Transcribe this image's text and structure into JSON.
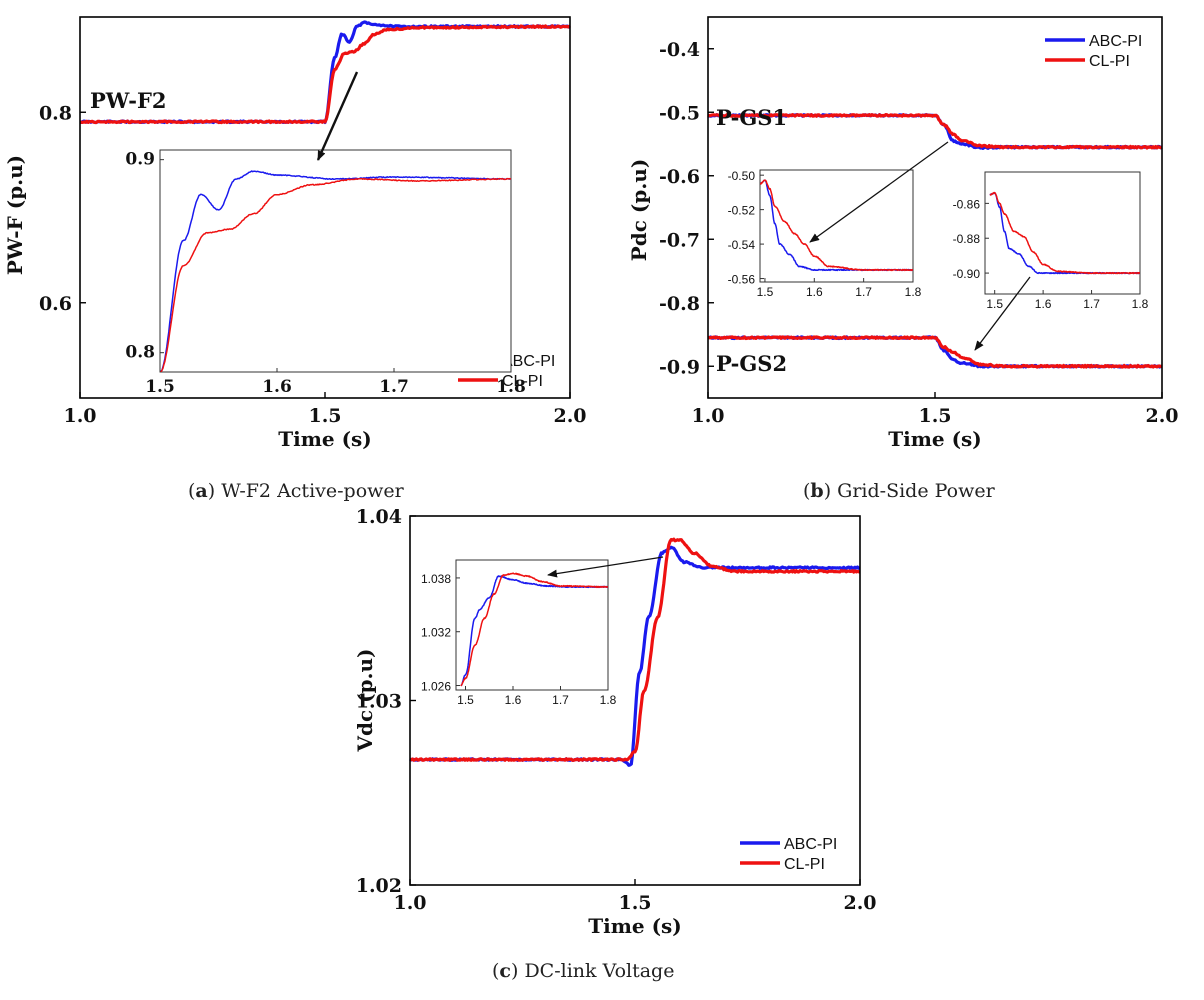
{
  "figure": {
    "colors": {
      "abc": "#1a1aee",
      "cl": "#ee1111",
      "axis": "#000000",
      "arrow": "#111111"
    }
  },
  "chart_data": [
    {
      "type": "line",
      "id": "a",
      "caption_letter": "a",
      "caption_text": "W-F2 Active-power",
      "xlabel": "Time (s)",
      "ylabel": "PW-F (p.u)",
      "xlim": [
        1.0,
        2.0
      ],
      "ylim": [
        0.5,
        0.9
      ],
      "xticks": [
        1.0,
        1.5,
        2.0
      ],
      "xtick_labels": [
        "1.0",
        "1.5",
        "2.0"
      ],
      "yticks": [
        0.6,
        0.8
      ],
      "ytick_labels": [
        "0.6",
        "0.8"
      ],
      "annotations": [
        "PW-F2"
      ],
      "legend": {
        "position": "bottom-right",
        "entries": [
          "ABC-PI",
          "CL-PI"
        ]
      },
      "series": [
        {
          "name": "ABC-PI",
          "x": [
            1.0,
            1.48,
            1.5,
            1.52,
            1.535,
            1.55,
            1.565,
            1.58,
            1.6,
            1.65,
            2.0
          ],
          "y": [
            0.79,
            0.79,
            0.79,
            0.858,
            0.882,
            0.874,
            0.89,
            0.894,
            0.892,
            0.89,
            0.89
          ]
        },
        {
          "name": "CL-PI",
          "x": [
            1.0,
            1.48,
            1.5,
            1.52,
            1.54,
            1.56,
            1.58,
            1.6,
            1.63,
            1.7,
            2.0
          ],
          "y": [
            0.79,
            0.79,
            0.79,
            0.845,
            0.862,
            0.864,
            0.872,
            0.882,
            0.887,
            0.889,
            0.89
          ]
        }
      ],
      "insets": [
        {
          "xlim": [
            1.5,
            1.8
          ],
          "ylim": [
            0.79,
            0.905
          ],
          "xticks": [
            1.5,
            1.6,
            1.7,
            1.8
          ],
          "xtick_labels": [
            "1.5",
            "1.6",
            "1.7",
            "1.8"
          ],
          "yticks": [
            0.8,
            0.9
          ],
          "ytick_labels": [
            "0.8",
            "0.9"
          ],
          "series": [
            {
              "name": "ABC-PI",
              "x": [
                1.5,
                1.52,
                1.535,
                1.55,
                1.565,
                1.58,
                1.6,
                1.65,
                1.7,
                1.8
              ],
              "y": [
                0.79,
                0.858,
                0.882,
                0.874,
                0.89,
                0.894,
                0.892,
                0.89,
                0.891,
                0.89
              ]
            },
            {
              "name": "CL-PI",
              "x": [
                1.5,
                1.52,
                1.54,
                1.56,
                1.58,
                1.6,
                1.63,
                1.67,
                1.72,
                1.8
              ],
              "y": [
                0.79,
                0.845,
                0.862,
                0.864,
                0.872,
                0.882,
                0.887,
                0.89,
                0.889,
                0.89
              ]
            }
          ]
        }
      ]
    },
    {
      "type": "line",
      "id": "b",
      "caption_letter": "b",
      "caption_text": "Grid-Side Power",
      "xlabel": "Time (s)",
      "ylabel": "Pdc (p.u)",
      "xlim": [
        1.0,
        2.0
      ],
      "ylim": [
        -0.95,
        -0.35
      ],
      "xticks": [
        1.0,
        1.5,
        2.0
      ],
      "xtick_labels": [
        "1.0",
        "1.5",
        "2.0"
      ],
      "yticks": [
        -0.4,
        -0.5,
        -0.6,
        -0.7,
        -0.8,
        -0.9
      ],
      "ytick_labels": [
        "-0.4",
        "-0.5",
        "-0.6",
        "-0.7",
        "-0.8",
        "-0.9"
      ],
      "annotations": [
        "P-GS1",
        "P-GS2"
      ],
      "legend": {
        "position": "top-right",
        "entries": [
          "ABC-PI",
          "CL-PI"
        ]
      },
      "series": [
        {
          "name": "ABC-PI (P-GS1)",
          "x": [
            1.0,
            1.5,
            1.52,
            1.54,
            1.56,
            1.6,
            1.65,
            2.0
          ],
          "y": [
            -0.505,
            -0.505,
            -0.52,
            -0.545,
            -0.55,
            -0.556,
            -0.555,
            -0.555
          ]
        },
        {
          "name": "CL-PI (P-GS1)",
          "x": [
            1.0,
            1.5,
            1.52,
            1.54,
            1.56,
            1.6,
            1.65,
            2.0
          ],
          "y": [
            -0.505,
            -0.505,
            -0.52,
            -0.535,
            -0.545,
            -0.553,
            -0.555,
            -0.555
          ]
        },
        {
          "name": "ABC-PI (P-GS2)",
          "x": [
            1.0,
            1.5,
            1.52,
            1.54,
            1.56,
            1.6,
            1.65,
            2.0
          ],
          "y": [
            -0.855,
            -0.855,
            -0.875,
            -0.89,
            -0.895,
            -0.9,
            -0.9,
            -0.9
          ]
        },
        {
          "name": "CL-PI (P-GS2)",
          "x": [
            1.0,
            1.5,
            1.52,
            1.54,
            1.56,
            1.6,
            1.65,
            2.0
          ],
          "y": [
            -0.855,
            -0.855,
            -0.87,
            -0.878,
            -0.886,
            -0.897,
            -0.9,
            -0.9
          ]
        }
      ],
      "insets": [
        {
          "xlim": [
            1.49,
            1.8
          ],
          "ylim": [
            -0.562,
            -0.497
          ],
          "xticks": [
            1.5,
            1.6,
            1.7,
            1.8
          ],
          "xtick_labels": [
            "1.5",
            "1.6",
            "1.7",
            "1.8"
          ],
          "yticks": [
            -0.5,
            -0.52,
            -0.54,
            -0.56
          ],
          "ytick_labels": [
            "-0.50",
            "-0.52",
            "-0.54",
            "-0.56"
          ],
          "series": [
            {
              "name": "ABC-PI",
              "x": [
                1.49,
                1.5,
                1.51,
                1.52,
                1.53,
                1.55,
                1.57,
                1.6,
                1.65,
                1.7,
                1.8
              ],
              "y": [
                -0.505,
                -0.503,
                -0.512,
                -0.528,
                -0.54,
                -0.546,
                -0.553,
                -0.555,
                -0.555,
                -0.555,
                -0.555
              ]
            },
            {
              "name": "CL-PI",
              "x": [
                1.49,
                1.5,
                1.51,
                1.52,
                1.54,
                1.56,
                1.58,
                1.6,
                1.63,
                1.7,
                1.8
              ],
              "y": [
                -0.505,
                -0.503,
                -0.508,
                -0.518,
                -0.527,
                -0.534,
                -0.54,
                -0.547,
                -0.553,
                -0.555,
                -0.555
              ]
            }
          ]
        },
        {
          "xlim": [
            1.48,
            1.8
          ],
          "ylim": [
            -0.912,
            -0.842
          ],
          "xticks": [
            1.5,
            1.6,
            1.7,
            1.8
          ],
          "xtick_labels": [
            "1.5",
            "1.6",
            "1.7",
            "1.8"
          ],
          "yticks": [
            -0.86,
            -0.88,
            -0.9
          ],
          "ytick_labels": [
            "-0.86",
            "-0.88",
            "-0.90"
          ],
          "series": [
            {
              "name": "ABC-PI",
              "x": [
                1.49,
                1.5,
                1.51,
                1.52,
                1.53,
                1.55,
                1.57,
                1.59,
                1.62,
                1.7,
                1.8
              ],
              "y": [
                -0.855,
                -0.854,
                -0.862,
                -0.876,
                -0.886,
                -0.889,
                -0.896,
                -0.9,
                -0.9,
                -0.9,
                -0.9
              ]
            },
            {
              "name": "CL-PI",
              "x": [
                1.49,
                1.5,
                1.51,
                1.52,
                1.54,
                1.56,
                1.58,
                1.6,
                1.63,
                1.7,
                1.8
              ],
              "y": [
                -0.855,
                -0.854,
                -0.86,
                -0.866,
                -0.876,
                -0.879,
                -0.888,
                -0.895,
                -0.899,
                -0.9,
                -0.9
              ]
            }
          ]
        }
      ]
    },
    {
      "type": "line",
      "id": "c",
      "caption_letter": "c",
      "caption_text": "DC-link Voltage",
      "xlabel": "Time (s)",
      "ylabel": "Vdc (p.u)",
      "xlim": [
        1.0,
        2.0
      ],
      "ylim": [
        1.02,
        1.04
      ],
      "xticks": [
        1.0,
        1.5,
        2.0
      ],
      "xtick_labels": [
        "1.0",
        "1.5",
        "2.0"
      ],
      "yticks": [
        1.02,
        1.03,
        1.04
      ],
      "ytick_labels": [
        "1.02",
        "1.03",
        "1.04"
      ],
      "annotations": [],
      "legend": {
        "position": "bottom-right",
        "entries": [
          "ABC-PI",
          "CL-PI"
        ]
      },
      "series": [
        {
          "name": "ABC-PI",
          "x": [
            1.0,
            1.47,
            1.49,
            1.51,
            1.53,
            1.56,
            1.58,
            1.61,
            1.65,
            1.7,
            2.0
          ],
          "y": [
            1.0268,
            1.0268,
            1.0265,
            1.0315,
            1.0345,
            1.038,
            1.0383,
            1.0375,
            1.0372,
            1.0372,
            1.0372
          ]
        },
        {
          "name": "CL-PI",
          "x": [
            1.0,
            1.48,
            1.5,
            1.52,
            1.55,
            1.58,
            1.6,
            1.63,
            1.67,
            1.72,
            2.0
          ],
          "y": [
            1.0268,
            1.0268,
            1.0272,
            1.0305,
            1.0345,
            1.0387,
            1.0387,
            1.038,
            1.0373,
            1.037,
            1.037
          ]
        }
      ],
      "insets": [
        {
          "xlim": [
            1.48,
            1.8
          ],
          "ylim": [
            1.0255,
            1.04
          ],
          "xticks": [
            1.5,
            1.6,
            1.7,
            1.8
          ],
          "xtick_labels": [
            "1.5",
            "1.6",
            "1.7",
            "1.8"
          ],
          "yticks": [
            1.026,
            1.032,
            1.038
          ],
          "ytick_labels": [
            "1.026",
            "1.032",
            "1.038"
          ],
          "series": [
            {
              "name": "ABC-PI",
              "x": [
                1.49,
                1.5,
                1.52,
                1.53,
                1.55,
                1.57,
                1.6,
                1.63,
                1.67,
                1.72,
                1.8
              ],
              "y": [
                1.026,
                1.0272,
                1.0335,
                1.0345,
                1.0358,
                1.0382,
                1.0378,
                1.0374,
                1.0371,
                1.037,
                1.037
              ]
            },
            {
              "name": "CL-PI",
              "x": [
                1.49,
                1.5,
                1.52,
                1.54,
                1.56,
                1.58,
                1.6,
                1.63,
                1.66,
                1.7,
                1.8
              ],
              "y": [
                1.026,
                1.0268,
                1.0305,
                1.0335,
                1.0362,
                1.0383,
                1.0385,
                1.0382,
                1.0376,
                1.0371,
                1.037
              ]
            }
          ]
        }
      ]
    }
  ]
}
